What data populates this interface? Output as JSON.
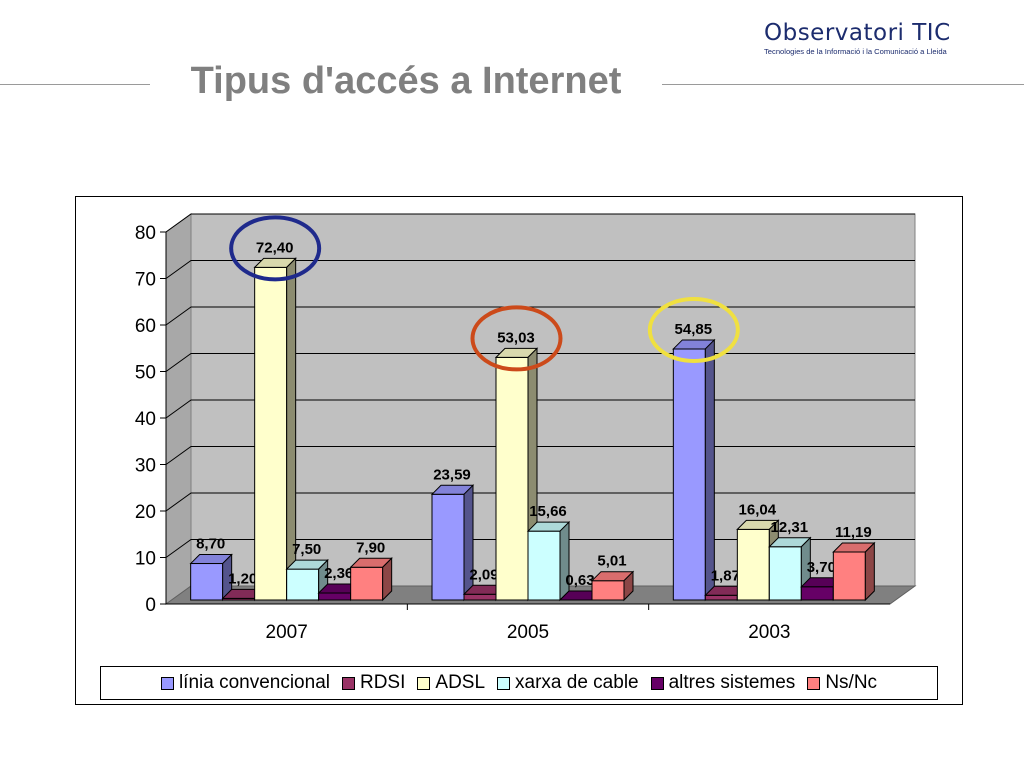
{
  "header": {
    "logo_main": "Observatori",
    "logo_suffix": "TIC",
    "logo_sub": "Tecnologies de la Informació i la Comunicació a Lleida",
    "title": "Tipus d'accés a Internet"
  },
  "chart_data": {
    "type": "bar",
    "style": "3d-clustered",
    "categories": [
      "2007",
      "2005",
      "2003"
    ],
    "ylim": [
      0,
      80
    ],
    "yticks": [
      "0",
      "10",
      "20",
      "30",
      "40",
      "50",
      "60",
      "70",
      "80"
    ],
    "grid": true,
    "legend_position": "bottom",
    "series": [
      {
        "name": "línia convencional",
        "color": "#9999ff",
        "values": [
          8.7,
          23.59,
          54.85
        ],
        "labels": [
          "8,70",
          "23,59",
          "54,85"
        ]
      },
      {
        "name": "RDSI",
        "color": "#993366",
        "values": [
          1.2,
          2.09,
          1.87
        ],
        "labels": [
          "1,20",
          "2,09",
          "1,87"
        ]
      },
      {
        "name": "ADSL",
        "color": "#ffffcc",
        "values": [
          72.4,
          53.03,
          16.04
        ],
        "labels": [
          "72,40",
          "53,03",
          "16,04"
        ]
      },
      {
        "name": "xarxa de cable",
        "color": "#ccffff",
        "values": [
          7.5,
          15.66,
          12.31
        ],
        "labels": [
          "7,50",
          "15,66",
          "12,31"
        ]
      },
      {
        "name": "altres sistemes",
        "color": "#660066",
        "values": [
          2.36,
          0.63,
          3.7
        ],
        "labels": [
          "2,36",
          "0,63",
          "3,70"
        ]
      },
      {
        "name": "Ns/Nc",
        "color": "#ff8080",
        "values": [
          7.9,
          5.01,
          11.19
        ],
        "labels": [
          "7,90",
          "5,01",
          "11,19"
        ]
      }
    ],
    "highlight_circles": [
      {
        "category": "2007",
        "series": "ADSL",
        "color": "#1f2a8c"
      },
      {
        "category": "2005",
        "series": "ADSL",
        "color": "#cc4a1a"
      },
      {
        "category": "2003",
        "series": "línia convencional",
        "color": "#f0e040"
      }
    ]
  }
}
